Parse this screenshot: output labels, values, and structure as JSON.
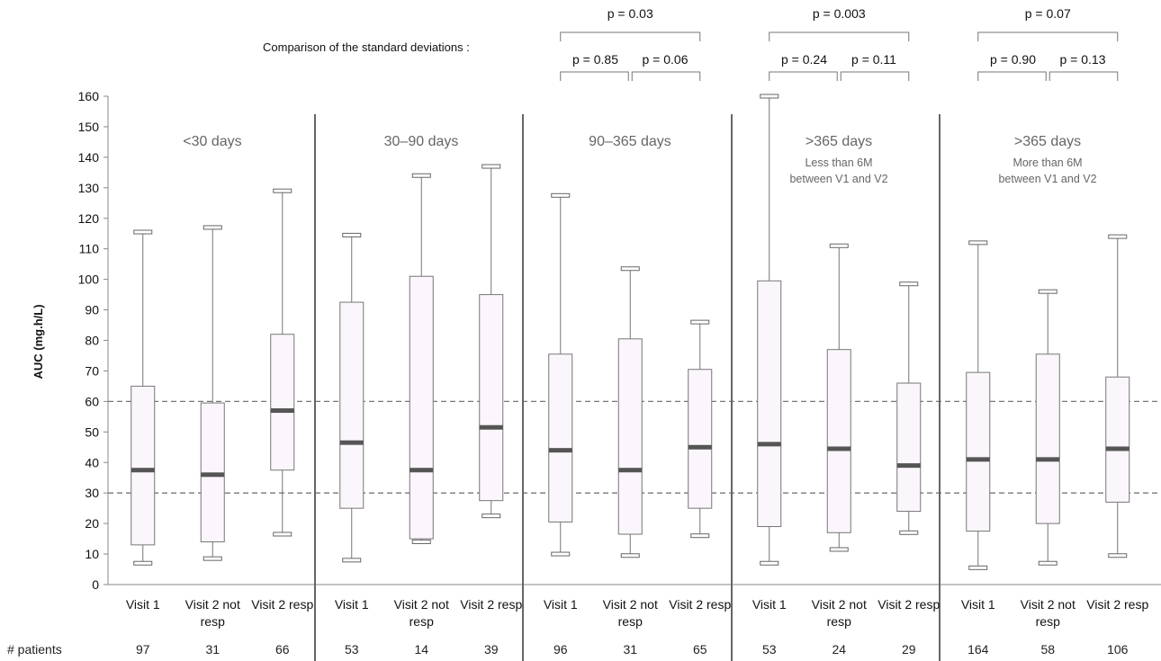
{
  "chart_data": {
    "type": "boxplot",
    "ylabel": "AUC (mg.h/L)",
    "ylim": [
      0,
      160
    ],
    "yticks": [
      0,
      10,
      20,
      30,
      40,
      50,
      60,
      70,
      80,
      90,
      100,
      110,
      120,
      130,
      140,
      150,
      160
    ],
    "reference_lines": [
      30,
      60
    ],
    "comparison_label": "Comparison of the standard deviations :",
    "patients_label": "# patients",
    "panels": [
      {
        "title": "<30 days",
        "subtitle": [],
        "boxes": [
          {
            "label": [
              "Visit 1"
            ],
            "min": 7,
            "q1": 13,
            "median": 37.5,
            "q3": 65,
            "max": 115.5,
            "n": "97"
          },
          {
            "label": [
              "Visit 2 not",
              "resp"
            ],
            "min": 8.5,
            "q1": 14,
            "median": 36,
            "q3": 59.5,
            "max": 117,
            "n": "31"
          },
          {
            "label": [
              "Visit 2 resp"
            ],
            "min": 16.5,
            "q1": 37.5,
            "median": 57,
            "q3": 82,
            "max": 129,
            "n": "66"
          }
        ],
        "pvalues": null
      },
      {
        "title": "30–90 days",
        "subtitle": [],
        "boxes": [
          {
            "label": [
              "Visit 1"
            ],
            "min": 8,
            "q1": 25,
            "median": 46.5,
            "q3": 92.5,
            "max": 114.5,
            "n": "53"
          },
          {
            "label": [
              "Visit 2 not",
              "resp"
            ],
            "min": 14,
            "q1": 15,
            "median": 37.5,
            "q3": 101,
            "max": 134,
            "n": "14"
          },
          {
            "label": [
              "Visit 2 resp"
            ],
            "min": 22.5,
            "q1": 27.5,
            "median": 51.5,
            "q3": 95,
            "max": 137,
            "n": "39"
          }
        ],
        "pvalues": null
      },
      {
        "title": "90–365 days",
        "subtitle": [],
        "boxes": [
          {
            "label": [
              "Visit 1"
            ],
            "min": 10,
            "q1": 20.5,
            "median": 44,
            "q3": 75.5,
            "max": 127.5,
            "n": "96"
          },
          {
            "label": [
              "Visit 2 not",
              "resp"
            ],
            "min": 9.5,
            "q1": 16.5,
            "median": 37.5,
            "q3": 80.5,
            "max": 103.5,
            "n": "31"
          },
          {
            "label": [
              "Visit 2 resp"
            ],
            "min": 16,
            "q1": 25,
            "median": 45,
            "q3": 70.5,
            "max": 86,
            "n": "65"
          }
        ],
        "pvalues": {
          "overall": "p = 0.03",
          "left": "p = 0.85",
          "right": "p = 0.06"
        }
      },
      {
        "title": ">365 days",
        "subtitle": [
          "Less than 6M",
          "between V1 and V2"
        ],
        "boxes": [
          {
            "label": [
              "Visit 1"
            ],
            "min": 7,
            "q1": 19,
            "median": 46,
            "q3": 99.5,
            "max": 160,
            "n": "53"
          },
          {
            "label": [
              "Visit 2 not",
              "resp"
            ],
            "min": 11.5,
            "q1": 17,
            "median": 44.5,
            "q3": 77,
            "max": 111,
            "n": "24"
          },
          {
            "label": [
              "Visit 2 resp"
            ],
            "min": 17,
            "q1": 24,
            "median": 39,
            "q3": 66,
            "max": 98.5,
            "n": "29"
          }
        ],
        "pvalues": {
          "overall": "p = 0.003",
          "left": "p = 0.24",
          "right": "p = 0.11"
        }
      },
      {
        "title": ">365 days",
        "subtitle": [
          "More than 6M",
          "between V1 and V2"
        ],
        "boxes": [
          {
            "label": [
              "Visit 1"
            ],
            "min": 5.5,
            "q1": 17.5,
            "median": 41,
            "q3": 69.5,
            "max": 112,
            "n": "164"
          },
          {
            "label": [
              "Visit 2 not",
              "resp"
            ],
            "min": 7,
            "q1": 20,
            "median": 41,
            "q3": 75.5,
            "max": 96,
            "n": "58"
          },
          {
            "label": [
              "Visit 2 resp"
            ],
            "min": 9.5,
            "q1": 27,
            "median": 44.5,
            "q3": 68,
            "max": 114,
            "n": "106"
          }
        ],
        "pvalues": {
          "overall": "p = 0.07",
          "left": "p = 0.90",
          "right": "p = 0.13"
        }
      }
    ],
    "colors": {
      "box_fill": "#fbf6fb",
      "median": "#555555",
      "divider": "#666666",
      "refline": "#777777"
    }
  }
}
